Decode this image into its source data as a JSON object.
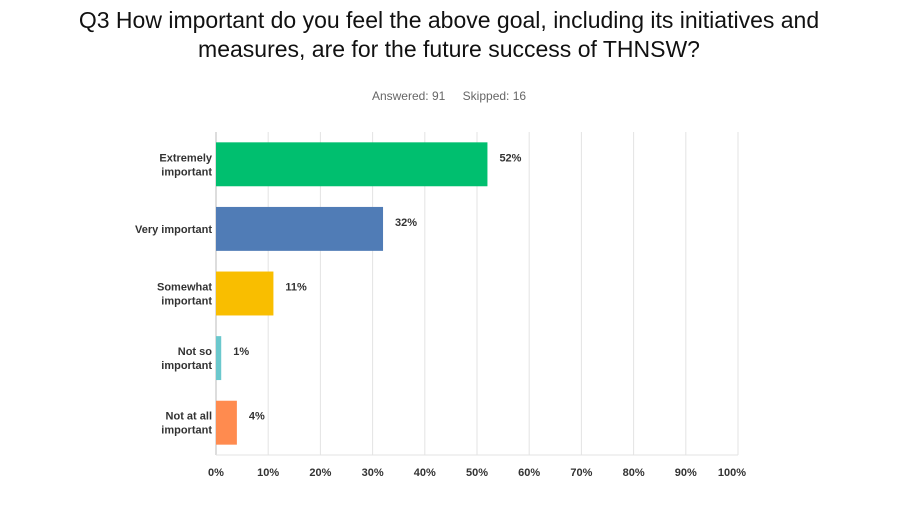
{
  "title_lines": [
    "Q3 How important do you feel the above goal, including its initiatives and",
    "measures, are for the future success of THNSW?"
  ],
  "answered": "Answered: 91",
  "skipped": "Skipped: 16",
  "chart_data": {
    "type": "bar",
    "orientation": "horizontal",
    "categories": [
      [
        "Extremely",
        "important"
      ],
      [
        "Very important"
      ],
      [
        "Somewhat",
        "important"
      ],
      [
        "Not so",
        "important"
      ],
      [
        "Not at all",
        "important"
      ]
    ],
    "values": [
      52,
      32,
      11,
      1,
      4
    ],
    "value_labels": [
      "52%",
      "32%",
      "11%",
      "1%",
      "4%"
    ],
    "colors": [
      "#00bf6f",
      "#507cb6",
      "#f9be00",
      "#6bc8cd",
      "#ff8b4f"
    ],
    "xlim": [
      0,
      100
    ],
    "x_ticks": [
      0,
      10,
      20,
      30,
      40,
      50,
      60,
      70,
      80,
      90,
      100
    ],
    "x_tick_labels": [
      "0%",
      "10%",
      "20%",
      "30%",
      "40%",
      "50%",
      "60%",
      "70%",
      "80%",
      "90%",
      "100%"
    ],
    "grid": true
  }
}
